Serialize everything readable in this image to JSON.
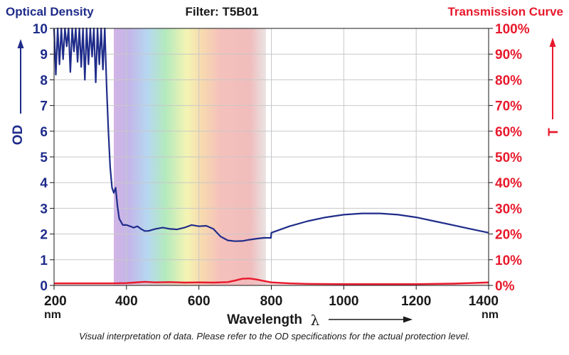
{
  "header": {
    "left_title": "Optical Density",
    "center_title": "Filter: T5B01",
    "right_title": "Transmission Curve"
  },
  "footer_note": "Visual interpretation of data. Please refer to the OD specifications for the actual protection level.",
  "colors": {
    "od": "#1f2c8a",
    "transmission": "#e8192c",
    "title": "#1a1a1a",
    "grid": "#c8c8c8"
  },
  "chart_data": {
    "type": "line",
    "title": "Filter: T5B01",
    "xlabel": "Wavelength",
    "xlabel_symbol": "λ",
    "xlim": [
      200,
      1400
    ],
    "x_ticks": [
      "200",
      "400",
      "600",
      "800",
      "1000",
      "1200",
      "1400"
    ],
    "x_unit": "nm",
    "y_left": {
      "label": "OD",
      "lim": [
        0,
        10
      ],
      "ticks": [
        "0",
        "1",
        "2",
        "3",
        "4",
        "5",
        "6",
        "7",
        "8",
        "9",
        "10"
      ]
    },
    "y_right": {
      "label": "T",
      "lim": [
        0,
        100
      ],
      "ticks": [
        "0%",
        "10%",
        "20%",
        "30%",
        "40%",
        "50%",
        "60%",
        "70%",
        "80%",
        "90%",
        "100%"
      ]
    },
    "grid": true,
    "visible_spectrum_band": [
      365,
      785
    ],
    "series": [
      {
        "name": "Optical Density",
        "axis": "left",
        "x": [
          200,
          205,
          210,
          215,
          220,
          225,
          230,
          235,
          240,
          245,
          250,
          255,
          260,
          265,
          270,
          275,
          280,
          285,
          290,
          295,
          300,
          305,
          310,
          315,
          320,
          325,
          330,
          335,
          340,
          345,
          350,
          355,
          360,
          365,
          370,
          375,
          380,
          390,
          400,
          410,
          420,
          430,
          440,
          450,
          460,
          480,
          500,
          520,
          540,
          560,
          580,
          600,
          620,
          640,
          660,
          680,
          700,
          720,
          740,
          760,
          780,
          799,
          800,
          820,
          850,
          900,
          950,
          1000,
          1050,
          1100,
          1150,
          1200,
          1250,
          1300,
          1350,
          1400
        ],
        "y": [
          10,
          8.2,
          10,
          8.6,
          10,
          8.8,
          10,
          9.3,
          10,
          8.3,
          10,
          9.1,
          10,
          8.7,
          10,
          8.5,
          10,
          8.0,
          10,
          8.6,
          10,
          8.9,
          10,
          7.9,
          10,
          8.6,
          10,
          8.4,
          10,
          7.8,
          6.0,
          4.6,
          3.8,
          3.6,
          3.8,
          3.1,
          2.6,
          2.35,
          2.35,
          2.3,
          2.25,
          2.3,
          2.2,
          2.12,
          2.12,
          2.2,
          2.25,
          2.2,
          2.18,
          2.25,
          2.35,
          2.3,
          2.32,
          2.2,
          1.9,
          1.75,
          1.72,
          1.73,
          1.78,
          1.82,
          1.85,
          1.85,
          2.05,
          2.15,
          2.3,
          2.5,
          2.65,
          2.75,
          2.8,
          2.8,
          2.75,
          2.65,
          2.5,
          2.35,
          2.2,
          2.05
        ]
      },
      {
        "name": "Transmission Curve",
        "axis": "right",
        "x": [
          200,
          300,
          360,
          400,
          420,
          450,
          480,
          520,
          560,
          600,
          640,
          680,
          700,
          720,
          740,
          760,
          780,
          800,
          850,
          900,
          1000,
          1100,
          1200,
          1300,
          1350,
          1400
        ],
        "y": [
          0.8,
          0.8,
          0.8,
          0.9,
          1.1,
          1.4,
          1.2,
          1.3,
          1.1,
          1.2,
          1.1,
          1.3,
          1.9,
          2.6,
          2.7,
          2.3,
          1.7,
          1.2,
          0.8,
          0.6,
          0.5,
          0.5,
          0.5,
          0.7,
          0.9,
          1.2
        ]
      }
    ]
  }
}
